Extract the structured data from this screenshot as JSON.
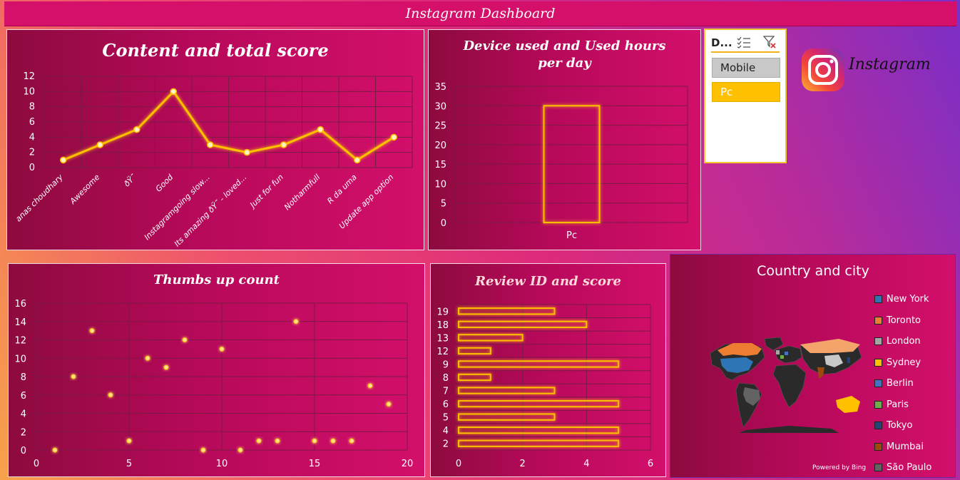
{
  "dashboard_title": "Instagram Dashboard",
  "slicer": {
    "title": "D...",
    "items": [
      {
        "label": "Mobile",
        "selected": false
      },
      {
        "label": "Pc",
        "selected": true
      }
    ]
  },
  "logo": {
    "text": "Instagram"
  },
  "map_panel": {
    "title": "Country and city",
    "credit": "Powered by Bing",
    "legend": [
      {
        "label": "New York",
        "color": "#2e75b6"
      },
      {
        "label": "Toronto",
        "color": "#ed7d31"
      },
      {
        "label": "London",
        "color": "#a5a5a5"
      },
      {
        "label": "Sydney",
        "color": "#ffc000"
      },
      {
        "label": "Berlin",
        "color": "#4472c4"
      },
      {
        "label": "Paris",
        "color": "#70ad47"
      },
      {
        "label": "Tokyo",
        "color": "#264478"
      },
      {
        "label": "Mumbai",
        "color": "#9e480e"
      },
      {
        "label": "São Paulo",
        "color": "#636363"
      }
    ]
  },
  "chart_data": [
    {
      "id": "content",
      "type": "line",
      "title": "Content and total score",
      "categories": [
        "anas choudhary",
        "Awesome",
        "ðŸ˜",
        "Good",
        "Instagramgoing slow...",
        "Its amazing ðŸ˜ - loved...",
        "Just for fun",
        "Notharmfull",
        "R da uma",
        "Update app option"
      ],
      "values": [
        1,
        3,
        5,
        10,
        3,
        2,
        3,
        5,
        1,
        4
      ],
      "ylim": [
        0,
        12
      ],
      "yticks": [
        "0",
        "2",
        "4",
        "6",
        "8",
        "10",
        "12"
      ],
      "grid": true,
      "color": "#ffc000"
    },
    {
      "id": "device",
      "type": "bar",
      "title": "Device used and Used hours per day",
      "title_lines": [
        "Device used and Used hours",
        "per day"
      ],
      "categories": [
        "Pc"
      ],
      "values": [
        30
      ],
      "ylim": [
        0,
        35
      ],
      "yticks": [
        "0",
        "5",
        "10",
        "15",
        "20",
        "25",
        "30",
        "35"
      ],
      "grid": true,
      "color": "#ffc000"
    },
    {
      "id": "thumbs",
      "type": "scatter",
      "title": "Thumbs up count",
      "x": [
        1,
        2,
        3,
        4,
        5,
        6,
        7,
        8,
        9,
        10,
        11,
        12,
        13,
        14,
        15,
        16,
        17,
        18,
        19
      ],
      "y": [
        0,
        8,
        13,
        6,
        1,
        10,
        9,
        12,
        0,
        11,
        0,
        1,
        1,
        14,
        1,
        1,
        1,
        7,
        5
      ],
      "xlim": [
        0,
        20
      ],
      "ylim": [
        0,
        16
      ],
      "xticks": [
        "0",
        "5",
        "10",
        "15",
        "20"
      ],
      "yticks": [
        "0",
        "2",
        "4",
        "6",
        "8",
        "10",
        "12",
        "14",
        "16"
      ],
      "grid": true,
      "color": "#ffc000"
    },
    {
      "id": "review",
      "type": "bar",
      "orientation": "horizontal",
      "title": "Review ID and score",
      "categories": [
        "19",
        "18",
        "13",
        "12",
        "9",
        "8",
        "7",
        "6",
        "5",
        "4",
        "2"
      ],
      "values": [
        3,
        4,
        2,
        1,
        5,
        1,
        3,
        5,
        3,
        5,
        5
      ],
      "xlim": [
        0,
        6
      ],
      "xticks": [
        "0",
        "2",
        "4",
        "6"
      ],
      "grid": true,
      "color": "#ffc000"
    }
  ]
}
